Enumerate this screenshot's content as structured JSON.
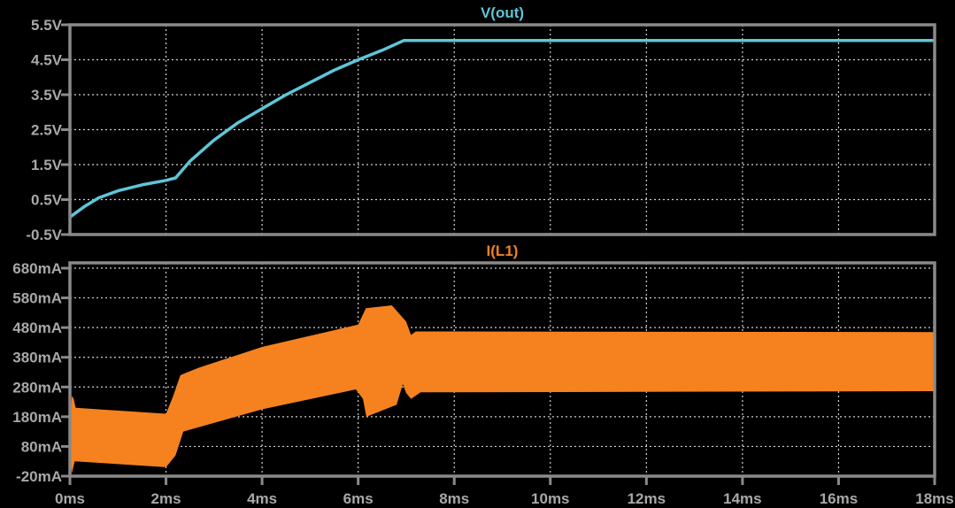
{
  "colors": {
    "background": "#000000",
    "frame": "#8a8a8a",
    "grid": "#d0d0d0",
    "vout": "#5ec6d8",
    "il1": "#f5821f",
    "tick_text": "#a8a8a8"
  },
  "chart_data": [
    {
      "type": "line",
      "title": "V(out)",
      "xlim": [
        0,
        18
      ],
      "ylim": [
        -0.5,
        5.5
      ],
      "x_ticks": [
        "0ms",
        "2ms",
        "4ms",
        "6ms",
        "8ms",
        "10ms",
        "12ms",
        "14ms",
        "16ms",
        "18ms"
      ],
      "y_ticks": [
        "5.5V",
        "4.5V",
        "3.5V",
        "2.5V",
        "1.5V",
        "0.5V",
        "-0.5V"
      ],
      "grid": true,
      "series": [
        {
          "name": "V(out)",
          "x": [
            0,
            0.3,
            0.6,
            1,
            1.5,
            2,
            2.2,
            2.5,
            3,
            3.5,
            4,
            4.5,
            5,
            5.5,
            6,
            6.5,
            6.95,
            18
          ],
          "y": [
            0,
            0.3,
            0.55,
            0.75,
            0.92,
            1.05,
            1.12,
            1.6,
            2.2,
            2.7,
            3.1,
            3.5,
            3.85,
            4.2,
            4.5,
            4.77,
            5.05,
            5.05
          ]
        }
      ]
    },
    {
      "type": "area",
      "title": "I(L1)",
      "xlim": [
        0,
        18
      ],
      "ylim": [
        -20,
        680
      ],
      "x_ticks": [
        "0ms",
        "2ms",
        "4ms",
        "6ms",
        "8ms",
        "10ms",
        "12ms",
        "14ms",
        "16ms",
        "18ms"
      ],
      "y_ticks": [
        "680mA",
        "580mA",
        "480mA",
        "380mA",
        "280mA",
        "180mA",
        "80mA",
        "-20mA"
      ],
      "grid": true,
      "series": [
        {
          "name": "I(L1)",
          "upper": {
            "x": [
              0,
              0.04,
              0.08,
              0.12,
              2,
              2.15,
              2.3,
              2.68,
              4,
              6,
              6.16,
              6.7,
              7.0,
              7.1,
              7.2,
              18
            ],
            "y": [
              150,
              250,
              240,
              210,
              190,
              250,
              320,
              345,
              415,
              490,
              545,
              555,
              500,
              455,
              467,
              465
            ]
          },
          "lower": {
            "x": [
              0,
              0.04,
              0.1,
              2,
              2.2,
              2.36,
              4,
              5.95,
              6.1,
              6.17,
              6.8,
              6.93,
              7.0,
              7.1,
              7.3,
              18
            ],
            "y": [
              60,
              -10,
              30,
              10,
              50,
              130,
              205,
              272,
              240,
              180,
              220,
              290,
              260,
              240,
              262,
              266
            ]
          }
        }
      ]
    }
  ]
}
